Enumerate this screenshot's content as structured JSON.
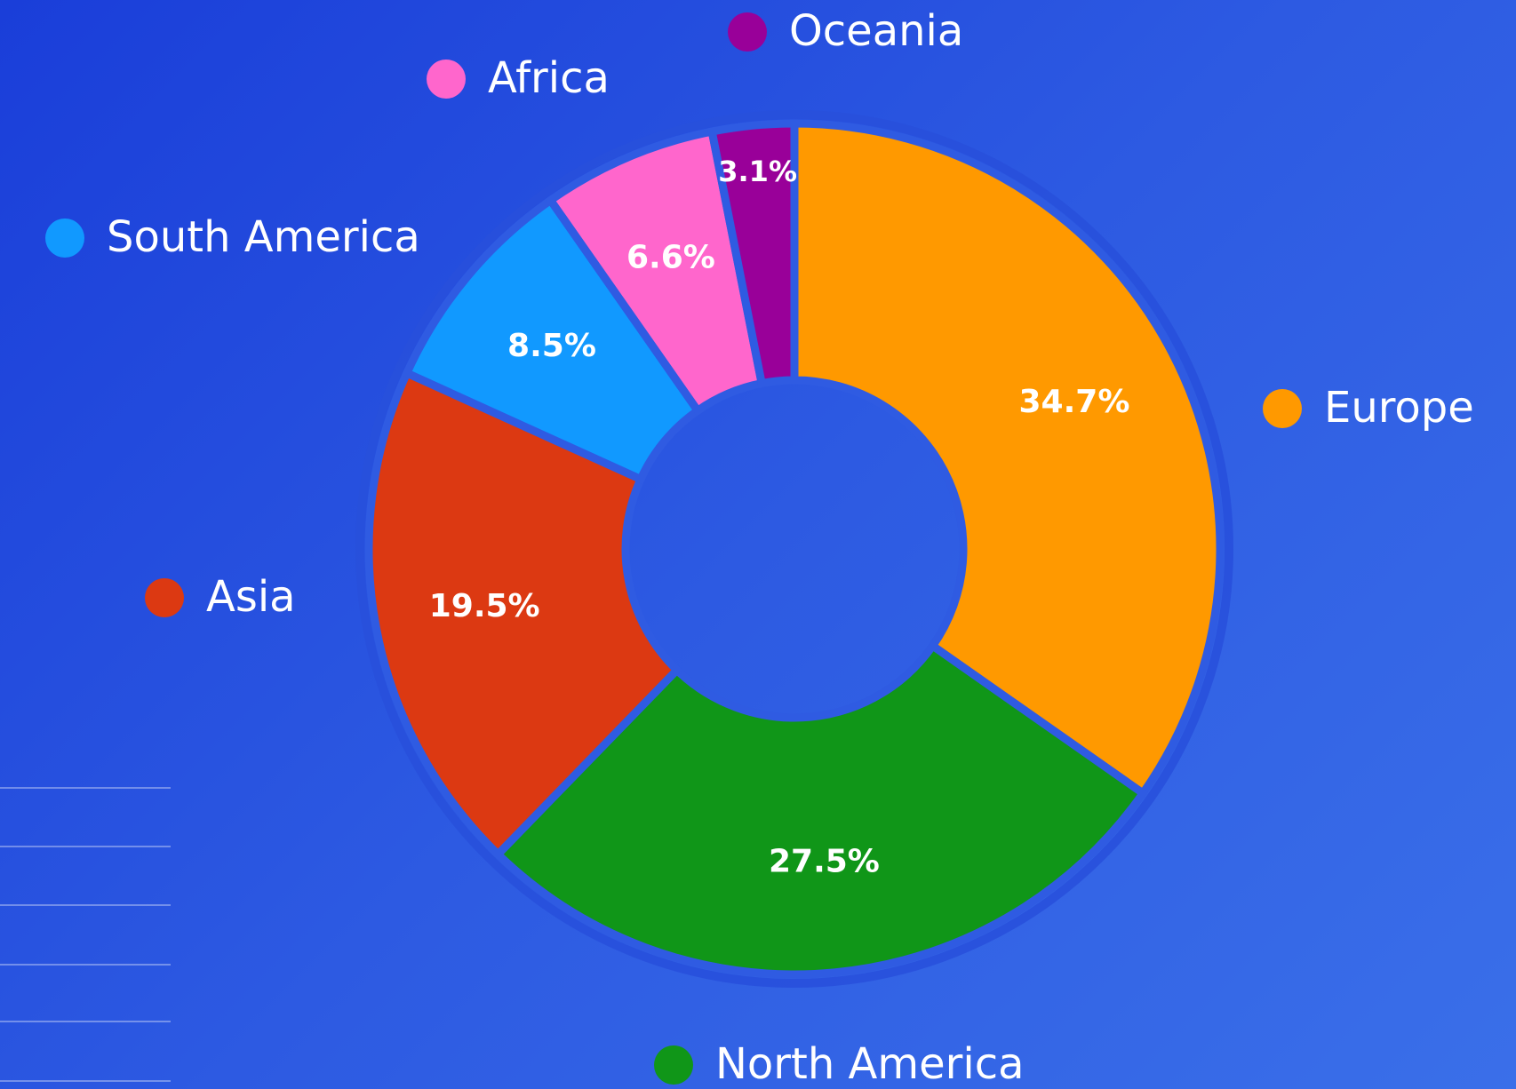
{
  "chart_data": {
    "type": "donut",
    "categories": [
      "Europe",
      "North America",
      "Asia",
      "South America",
      "Africa",
      "Oceania"
    ],
    "values": [
      34.7,
      27.5,
      19.5,
      8.5,
      6.6,
      3.1
    ],
    "value_labels": [
      "34.7%",
      "27.5%",
      "19.5%",
      "8.5%",
      "6.6%",
      "3.1%"
    ],
    "colors": [
      "#ff9900",
      "#109618",
      "#dc3912",
      "#1199ff",
      "#ff66cc",
      "#990099"
    ]
  }
}
